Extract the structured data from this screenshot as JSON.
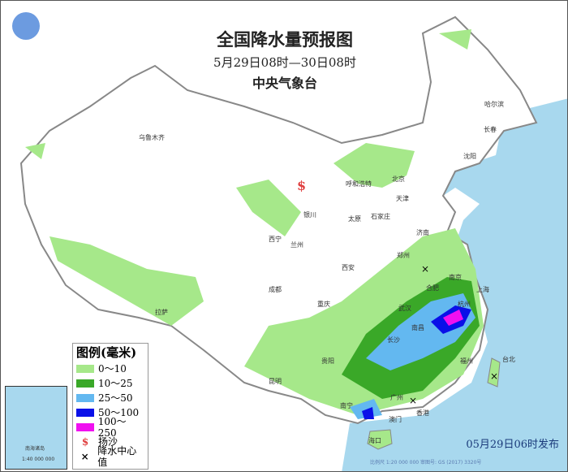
{
  "title": "全国降水量预报图",
  "period": "5月29日08时—30日08时",
  "issuer": "中央气象台",
  "legend": {
    "title": "图例(毫米)",
    "items": [
      {
        "label": "0～10",
        "color": "#a6e88a"
      },
      {
        "label": "10～25",
        "color": "#3aa828"
      },
      {
        "label": "25～50",
        "color": "#63b8f0"
      },
      {
        "label": "50～100",
        "color": "#0a10e8"
      },
      {
        "label": "100～250",
        "color": "#f010f0"
      }
    ],
    "sand_label": "扬沙",
    "sand_icon": "dollar-s-icon",
    "sand_color": "#e04040",
    "center_label": "降水中心值",
    "center_icon": "x-mark-icon"
  },
  "cities": [
    "乌鲁木齐",
    "哈尔滨",
    "长春",
    "沈阳",
    "北京",
    "天津",
    "呼和浩特",
    "银川",
    "太原",
    "石家庄",
    "济南",
    "西宁",
    "兰州",
    "西安",
    "郑州",
    "合肥",
    "南京",
    "上海",
    "武汉",
    "拉萨",
    "成都",
    "重庆",
    "长沙",
    "南昌",
    "杭州",
    "福州",
    "台北",
    "贵阳",
    "昆明",
    "南宁",
    "广州",
    "香港",
    "澳门",
    "海口"
  ],
  "inset": {
    "labels": [
      "南海诸岛"
    ],
    "scale": "1:40 000 000"
  },
  "published": "05月29日06时发布",
  "scale_note": "比例尺 1:20 000 000    审图号: GS (2017) 3320号",
  "colors": {
    "sea": "#a8d8ee",
    "border": "#888888"
  }
}
